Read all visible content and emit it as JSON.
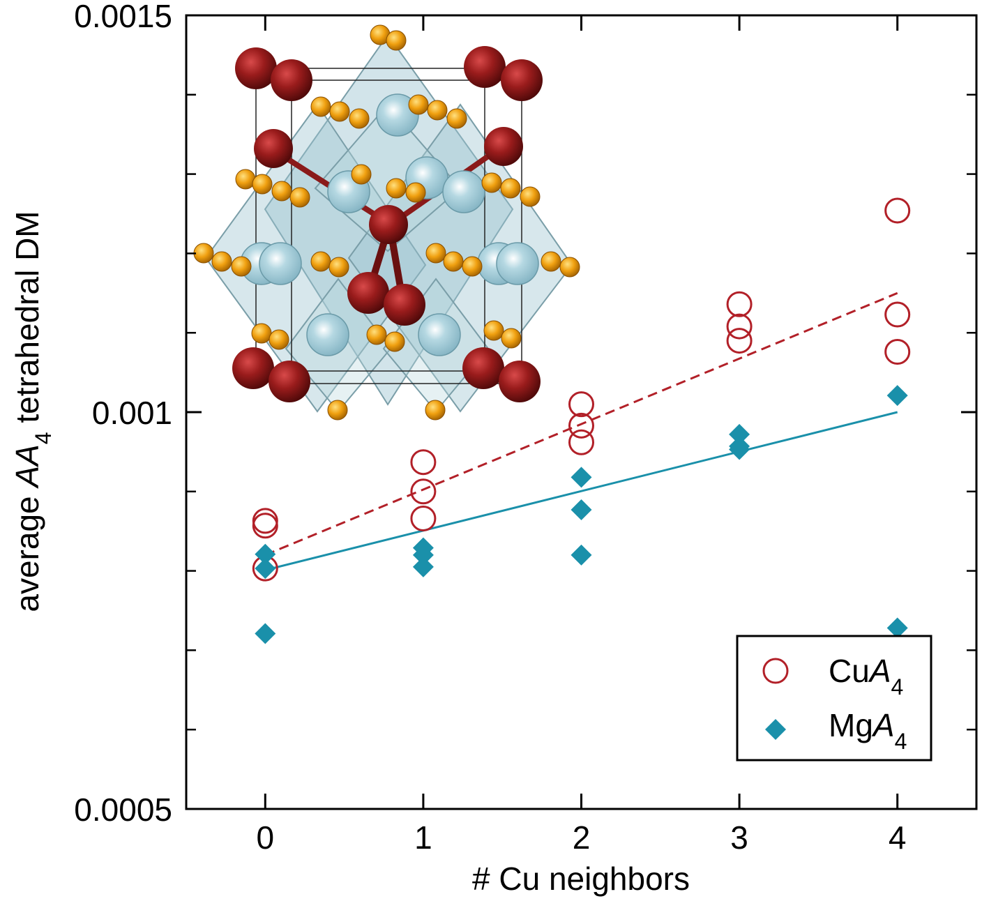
{
  "chart_data": {
    "type": "scatter",
    "xlabel": "# Cu neighbors",
    "ylabel_parts": {
      "prefix": "average ",
      "italic": "AA",
      "sub": "4",
      "suffix": " tetrahedral DM"
    },
    "xlim": [
      -0.5,
      4.5
    ],
    "ylim": [
      0.0005,
      0.0015
    ],
    "xticks": [
      0,
      1,
      2,
      3,
      4
    ],
    "xtick_labels": [
      "0",
      "1",
      "2",
      "3",
      "4"
    ],
    "yticks_labeled": [
      0.0005,
      0.001,
      0.0015
    ],
    "ytick_labels": [
      "0.0005",
      "0.001",
      "0.0015"
    ],
    "yticks_minor": [
      0.0006,
      0.0007,
      0.0008,
      0.0009,
      0.0011,
      0.0012,
      0.0013,
      0.0014
    ],
    "legend_position": "bottom-right",
    "series": [
      {
        "name": "CuA4",
        "label_main": "Cu",
        "label_italic": "A",
        "label_sub": "4",
        "marker": "open-circle",
        "color": "#b22028",
        "points": [
          {
            "x": 0,
            "y": 0.000863
          },
          {
            "x": 0,
            "y": 0.000857
          },
          {
            "x": 0,
            "y": 0.000803
          },
          {
            "x": 1,
            "y": 0.000937
          },
          {
            "x": 1,
            "y": 0.0009
          },
          {
            "x": 1,
            "y": 0.000866
          },
          {
            "x": 2,
            "y": 0.00101
          },
          {
            "x": 2,
            "y": 0.000983
          },
          {
            "x": 2,
            "y": 0.000962
          },
          {
            "x": 3,
            "y": 0.001136
          },
          {
            "x": 3,
            "y": 0.001108
          },
          {
            "x": 3,
            "y": 0.00109
          },
          {
            "x": 4,
            "y": 0.001254
          },
          {
            "x": 4,
            "y": 0.001123
          },
          {
            "x": 4,
            "y": 0.001076
          }
        ],
        "fit": {
          "style": "dashed",
          "x": [
            0,
            4
          ],
          "y": [
            0.00082,
            0.00115
          ]
        }
      },
      {
        "name": "MgA4",
        "label_main": "Mg",
        "label_italic": "A",
        "label_sub": "4",
        "marker": "filled-diamond",
        "color": "#1a90aa",
        "points": [
          {
            "x": 0,
            "y": 0.000821
          },
          {
            "x": 0,
            "y": 0.000803
          },
          {
            "x": 0,
            "y": 0.000721
          },
          {
            "x": 1,
            "y": 0.000829
          },
          {
            "x": 1,
            "y": 0.00082
          },
          {
            "x": 1,
            "y": 0.000805
          },
          {
            "x": 2,
            "y": 0.000918
          },
          {
            "x": 2,
            "y": 0.000877
          },
          {
            "x": 2,
            "y": 0.00082
          },
          {
            "x": 3,
            "y": 0.000972
          },
          {
            "x": 3,
            "y": 0.000957
          },
          {
            "x": 3,
            "y": 0.000953
          },
          {
            "x": 4,
            "y": 0.001021
          },
          {
            "x": 4,
            "y": 0.000728
          }
        ],
        "fit": {
          "style": "solid",
          "x": [
            0,
            4
          ],
          "y": [
            0.000801,
            0.001
          ]
        }
      }
    ],
    "inset": "crystal-structure-rendering"
  }
}
